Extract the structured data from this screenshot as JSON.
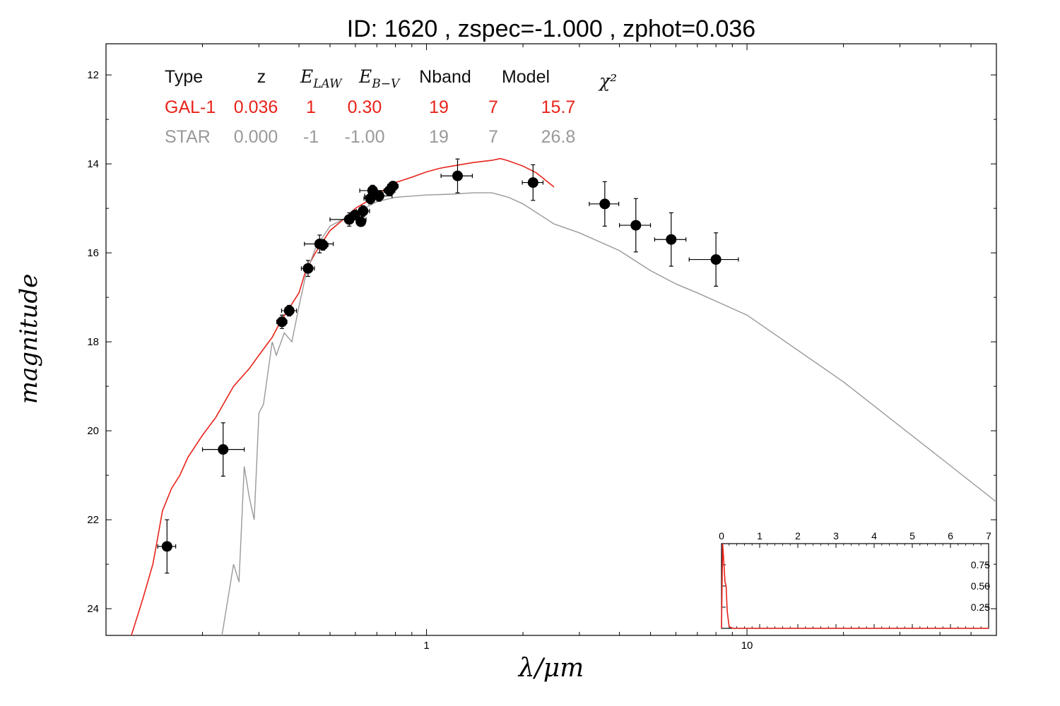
{
  "chart_data": {
    "type": "scatter",
    "title": "ID:  1620  , zspec=-1.000 , zphot=0.036",
    "xlabel": "λ/μm",
    "ylabel": "magnitude",
    "x_scale": "log",
    "xlim": [
      0.1,
      60
    ],
    "ylim": [
      24.6,
      11.3
    ],
    "y_inverted": true,
    "x_tick_labels": [
      "1",
      "10"
    ],
    "y_tick_labels": [
      "12",
      "14",
      "16",
      "18",
      "20",
      "22",
      "24"
    ],
    "table": {
      "headers": [
        "Type",
        "z",
        "E_LAW",
        "E_B-V",
        "Nband",
        "Model",
        "χ²"
      ],
      "rows": [
        {
          "name": "GAL-1",
          "color": "#e8231a",
          "values": [
            "GAL-1",
            "0.036",
            "1",
            "0.30",
            "19",
            "7",
            "15.7"
          ]
        },
        {
          "name": "STAR",
          "color": "#999999",
          "values": [
            "STAR",
            "0.000",
            "-1",
            "-1.00",
            "19",
            "7",
            "26.8"
          ]
        }
      ]
    },
    "observations": [
      {
        "x": 0.155,
        "y": 22.6,
        "xerr_lo": 0.01,
        "xerr_hi": 0.01,
        "yerr": 0.6
      },
      {
        "x": 0.232,
        "y": 20.42,
        "xerr_lo": 0.032,
        "xerr_hi": 0.038,
        "yerr": 0.6
      },
      {
        "x": 0.354,
        "y": 17.55,
        "xerr_lo": 0.013,
        "xerr_hi": 0.013,
        "yerr": 0.15
      },
      {
        "x": 0.373,
        "y": 17.3,
        "xerr_lo": 0.02,
        "xerr_hi": 0.02,
        "yerr": 0.12
      },
      {
        "x": 0.427,
        "y": 16.35,
        "xerr_lo": 0.02,
        "xerr_hi": 0.02,
        "yerr": 0.18
      },
      {
        "x": 0.464,
        "y": 15.8,
        "xerr_lo": 0.048,
        "xerr_hi": 0.048,
        "yerr": 0.2
      },
      {
        "x": 0.475,
        "y": 15.82,
        "xerr_lo": 0.018,
        "xerr_hi": 0.018,
        "yerr": 0.12
      },
      {
        "x": 0.574,
        "y": 15.25,
        "xerr_lo": 0.074,
        "xerr_hi": 0.074,
        "yerr": 0.15
      },
      {
        "x": 0.598,
        "y": 15.15,
        "xerr_lo": 0.02,
        "xerr_hi": 0.02,
        "yerr": 0.1
      },
      {
        "x": 0.624,
        "y": 15.3,
        "xerr_lo": 0.018,
        "xerr_hi": 0.018,
        "yerr": 0.1
      },
      {
        "x": 0.634,
        "y": 15.06,
        "xerr_lo": 0.03,
        "xerr_hi": 0.03,
        "yerr": 0.12
      },
      {
        "x": 0.679,
        "y": 14.6,
        "xerr_lo": 0.06,
        "xerr_hi": 0.06,
        "yerr": 0.12
      },
      {
        "x": 0.668,
        "y": 14.78,
        "xerr_lo": 0.03,
        "xerr_hi": 0.03,
        "yerr": 0.12
      },
      {
        "x": 0.711,
        "y": 14.72,
        "xerr_lo": 0.07,
        "xerr_hi": 0.07,
        "yerr": 0.12
      },
      {
        "x": 0.767,
        "y": 14.6,
        "xerr_lo": 0.03,
        "xerr_hi": 0.03,
        "yerr": 0.1
      },
      {
        "x": 0.786,
        "y": 14.5,
        "xerr_lo": 0.03,
        "xerr_hi": 0.03,
        "yerr": 0.1
      },
      {
        "x": 1.25,
        "y": 14.27,
        "xerr_lo": 0.14,
        "xerr_hi": 0.14,
        "yerr": 0.38
      },
      {
        "x": 2.15,
        "y": 14.42,
        "xerr_lo": 0.16,
        "xerr_hi": 0.16,
        "yerr": 0.4
      },
      {
        "x": 3.6,
        "y": 14.9,
        "xerr_lo": 0.38,
        "xerr_hi": 0.38,
        "yerr": 0.5
      },
      {
        "x": 4.5,
        "y": 15.38,
        "xerr_lo": 0.5,
        "xerr_hi": 0.5,
        "yerr": 0.6
      },
      {
        "x": 5.8,
        "y": 15.7,
        "xerr_lo": 0.65,
        "xerr_hi": 0.65,
        "yerr": 0.6
      },
      {
        "x": 8.0,
        "y": 16.15,
        "xerr_lo": 1.4,
        "xerr_hi": 1.4,
        "yerr": 0.6
      }
    ],
    "series": [
      {
        "color": "#e8231a",
        "x": [
          0.12,
          0.13,
          0.14,
          0.145,
          0.15,
          0.16,
          0.17,
          0.18,
          0.2,
          0.22,
          0.25,
          0.28,
          0.3,
          0.33,
          0.35,
          0.38,
          0.4,
          0.42,
          0.45,
          0.5,
          0.55,
          0.6,
          0.65,
          0.7,
          0.75,
          0.8,
          0.9,
          1.0,
          1.1,
          1.2,
          1.4,
          1.6,
          1.7,
          1.8,
          2.0,
          2.2,
          2.5
        ],
        "y": [
          24.6,
          23.8,
          23.0,
          22.4,
          21.8,
          21.3,
          21.0,
          20.6,
          20.1,
          19.7,
          19.0,
          18.6,
          18.3,
          17.9,
          17.55,
          17.15,
          16.9,
          16.4,
          16.0,
          15.5,
          15.25,
          15.0,
          14.85,
          14.7,
          14.55,
          14.42,
          14.3,
          14.18,
          14.1,
          14.05,
          13.97,
          13.92,
          13.88,
          13.93,
          14.05,
          14.2,
          14.52
        ]
      },
      {
        "color": "#999999",
        "x": [
          0.23,
          0.25,
          0.26,
          0.27,
          0.28,
          0.29,
          0.3,
          0.31,
          0.33,
          0.34,
          0.36,
          0.38,
          0.4,
          0.42,
          0.45,
          0.5,
          0.6,
          0.7,
          0.8,
          1.0,
          1.2,
          1.4,
          1.6,
          1.8,
          2.0,
          2.5,
          3.0,
          4.0,
          5.0,
          6.0,
          7.0,
          10.0,
          20.0,
          40.0,
          60.0
        ],
        "y": [
          24.6,
          23.0,
          23.4,
          20.8,
          21.5,
          22.0,
          19.6,
          19.4,
          18.0,
          18.3,
          17.8,
          18.0,
          17.2,
          16.5,
          15.9,
          15.4,
          15.1,
          14.85,
          14.75,
          14.7,
          14.68,
          14.65,
          14.65,
          14.75,
          14.9,
          15.35,
          15.55,
          15.95,
          16.4,
          16.7,
          16.9,
          17.4,
          18.9,
          20.6,
          21.6
        ]
      }
    ],
    "inset": {
      "xlim": [
        0,
        7
      ],
      "ylim": [
        0,
        1
      ],
      "x_tick_labels": [
        "0",
        "1",
        "2",
        "3",
        "4",
        "5",
        "6",
        "7"
      ],
      "y_tick_labels": [
        "0.25",
        "0.50",
        "0.75"
      ],
      "series": [
        {
          "color": "#e8231a",
          "x": [
            0,
            0.03,
            0.06,
            0.09,
            0.12,
            0.15,
            0.2,
            0.3,
            1,
            7
          ],
          "y": [
            0,
            1.0,
            0.8,
            0.55,
            0.5,
            0.2,
            0.02,
            0.0,
            0.0,
            0.0
          ]
        }
      ]
    }
  }
}
